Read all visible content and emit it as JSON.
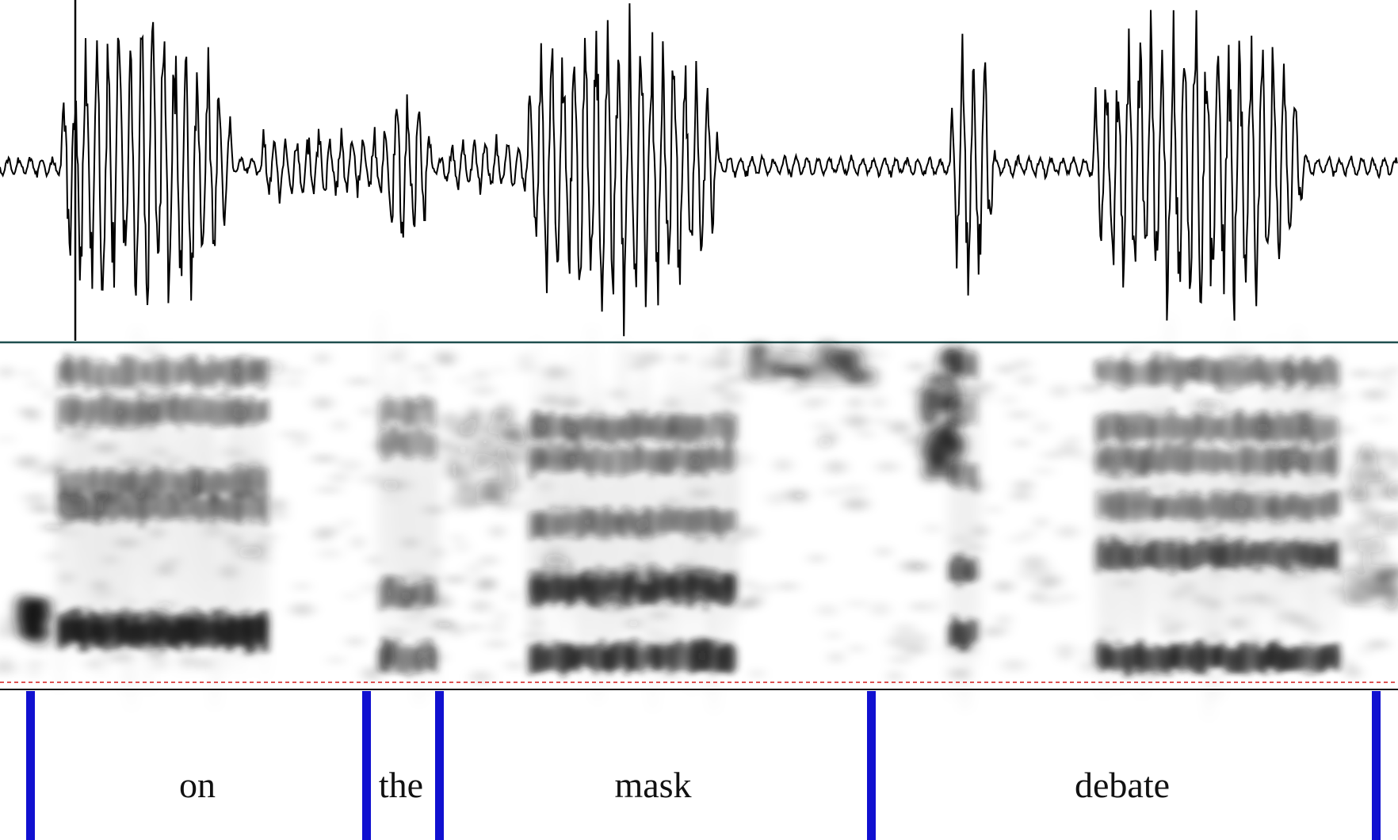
{
  "colors": {
    "background": "#ffffff",
    "waveform": "#000000",
    "spectrogram_ink": "#1a1a1a",
    "panel_divider": "#1f4f4f",
    "boundary_line": "#1010d0",
    "baseline_marker": "#d21b1b",
    "label_text": "#111111"
  },
  "panels": {
    "waveform_label": "",
    "spectrogram_label": "",
    "tier_label": ""
  },
  "tier": {
    "words": [
      {
        "text": "on"
      },
      {
        "text": "the"
      },
      {
        "text": "mask"
      },
      {
        "text": "debate"
      }
    ]
  }
}
